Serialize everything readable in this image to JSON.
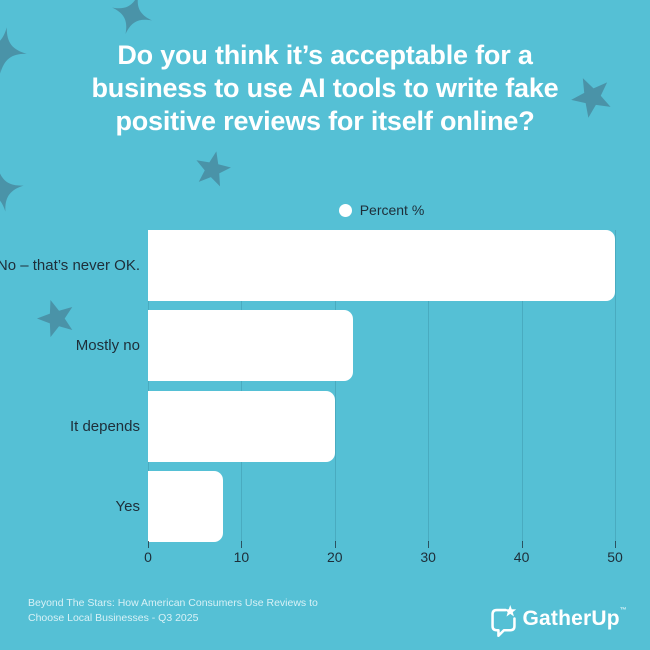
{
  "title_lines": [
    "Do you think it’s acceptable for a",
    "business to use AI tools to write fake",
    "positive reviews for itself online?"
  ],
  "legend": {
    "label": "Percent %"
  },
  "chart_data": {
    "type": "bar",
    "orientation": "horizontal",
    "title": "Do you think it’s acceptable for a business to use AI tools to write fake positive reviews for itself online?",
    "series_label": "Percent %",
    "categories": [
      "No – that’s never OK.",
      "Mostly no",
      "It depends",
      "Yes"
    ],
    "values": [
      50,
      22,
      20,
      8
    ],
    "xlim": [
      0,
      50
    ],
    "x_ticks": [
      0,
      10,
      20,
      30,
      40,
      50
    ],
    "grid": true,
    "legend_position": "top-center"
  },
  "footer": {
    "source_lines": [
      "Beyond The Stars: How American Consumers Use Reviews to",
      "Choose Local Businesses - Q3 2025"
    ]
  },
  "logo": {
    "text": "GatherUp",
    "trademark": "™"
  },
  "colors": {
    "background": "#55c0d5",
    "star": "#4a93a8",
    "bar": "#ffffff",
    "text_dark": "#1e2e39",
    "title_text": "#ffffff",
    "gridline": "#49abc0",
    "footer_text": "#d8f1f6"
  }
}
